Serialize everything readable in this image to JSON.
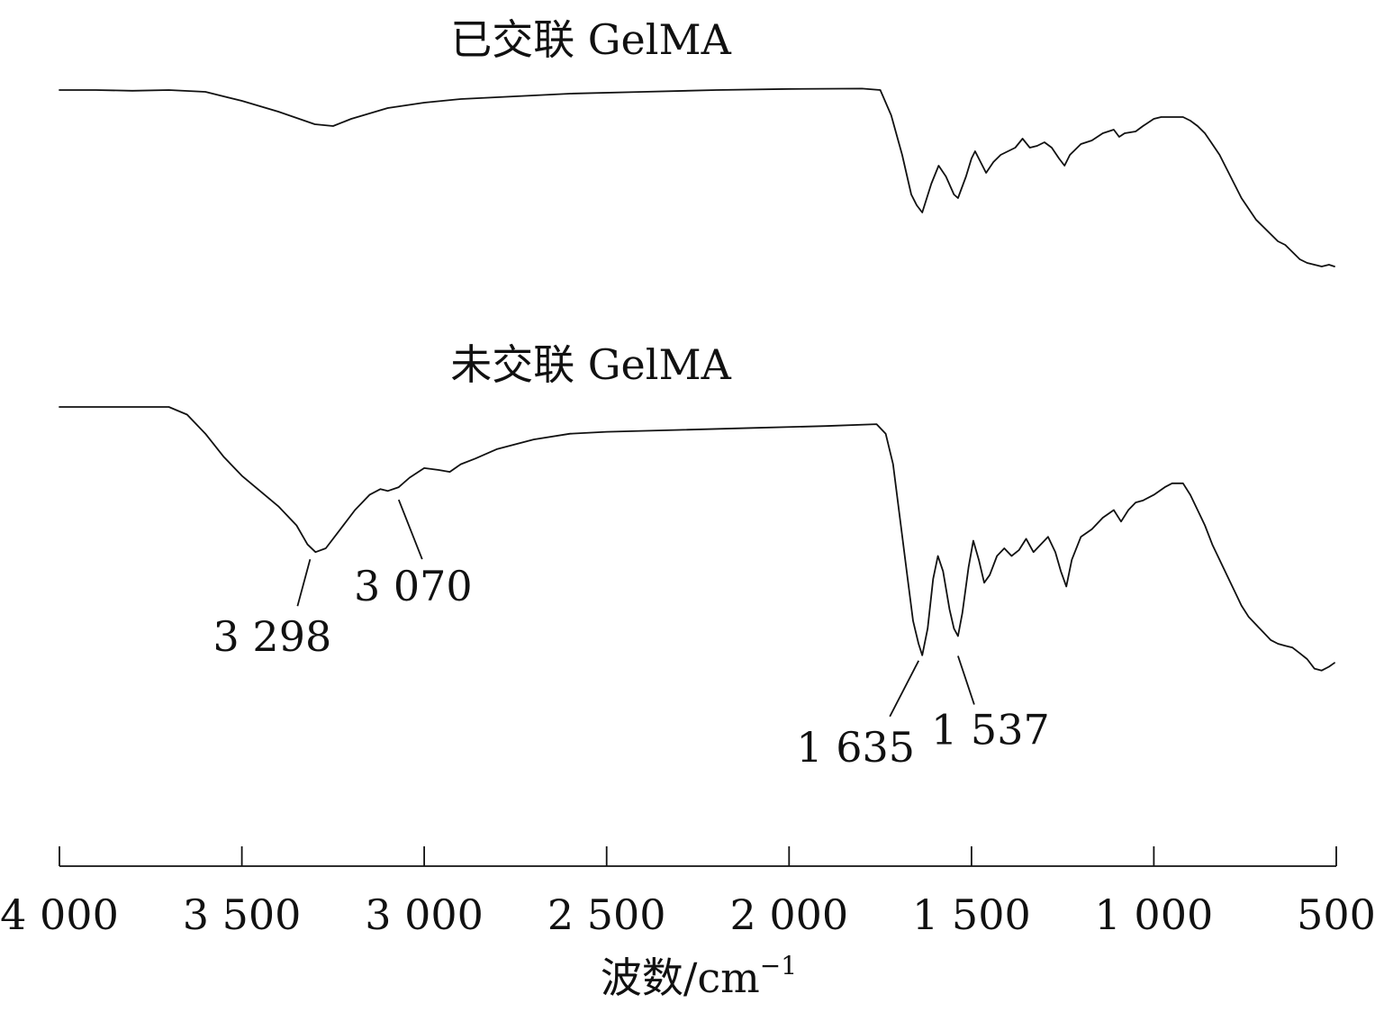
{
  "chart_data": {
    "type": "line",
    "title": "",
    "xlabel": "波数/cm⁻¹",
    "xlabel_main": "波数",
    "xlabel_unit": "/cm",
    "xlabel_sup": "−1",
    "ylabel": "",
    "xlim": [
      4000,
      500
    ],
    "x_reversed": true,
    "y_axis_shown": false,
    "grid": false,
    "legend": "none",
    "xticks": [
      4000,
      3500,
      3000,
      2500,
      2000,
      1500,
      1000,
      500
    ],
    "xtick_labels": [
      "4 000",
      "3 500",
      "3 000",
      "2 500",
      "2 000",
      "1 500",
      "1 000",
      "500"
    ],
    "series": [
      {
        "name": "已交联 GelMA",
        "color": "#111111",
        "points": [
          [
            4000,
            100
          ],
          [
            3900,
            100
          ],
          [
            3800,
            99.8
          ],
          [
            3700,
            100
          ],
          [
            3600,
            99.5
          ],
          [
            3500,
            97
          ],
          [
            3400,
            94
          ],
          [
            3300,
            90.5
          ],
          [
            3250,
            90
          ],
          [
            3200,
            92
          ],
          [
            3100,
            95
          ],
          [
            3000,
            96.5
          ],
          [
            2900,
            97.5
          ],
          [
            2800,
            98
          ],
          [
            2600,
            99
          ],
          [
            2400,
            99.5
          ],
          [
            2200,
            100
          ],
          [
            2000,
            100.3
          ],
          [
            1800,
            100.4
          ],
          [
            1750,
            100
          ],
          [
            1720,
            93
          ],
          [
            1690,
            82
          ],
          [
            1665,
            71
          ],
          [
            1650,
            68
          ],
          [
            1635,
            66
          ],
          [
            1610,
            74
          ],
          [
            1590,
            79
          ],
          [
            1570,
            76
          ],
          [
            1548,
            71
          ],
          [
            1537,
            70
          ],
          [
            1515,
            76
          ],
          [
            1500,
            81
          ],
          [
            1490,
            83
          ],
          [
            1475,
            80
          ],
          [
            1460,
            77
          ],
          [
            1440,
            80
          ],
          [
            1420,
            82
          ],
          [
            1400,
            83
          ],
          [
            1380,
            84
          ],
          [
            1360,
            86.5
          ],
          [
            1340,
            84
          ],
          [
            1320,
            84.5
          ],
          [
            1300,
            85.5
          ],
          [
            1280,
            84
          ],
          [
            1260,
            81
          ],
          [
            1245,
            79
          ],
          [
            1230,
            82
          ],
          [
            1200,
            85
          ],
          [
            1170,
            86
          ],
          [
            1140,
            88
          ],
          [
            1110,
            89
          ],
          [
            1095,
            87
          ],
          [
            1080,
            88
          ],
          [
            1050,
            88.5
          ],
          [
            1030,
            90
          ],
          [
            1000,
            92
          ],
          [
            980,
            92.5
          ],
          [
            950,
            92.5
          ],
          [
            920,
            92.5
          ],
          [
            900,
            91.5
          ],
          [
            880,
            90
          ],
          [
            860,
            88
          ],
          [
            840,
            85
          ],
          [
            820,
            82
          ],
          [
            800,
            78
          ],
          [
            780,
            74
          ],
          [
            760,
            70
          ],
          [
            740,
            67
          ],
          [
            720,
            64
          ],
          [
            700,
            62
          ],
          [
            680,
            60
          ],
          [
            660,
            58
          ],
          [
            640,
            57
          ],
          [
            620,
            55
          ],
          [
            600,
            53
          ],
          [
            580,
            52
          ],
          [
            560,
            51.5
          ],
          [
            540,
            51
          ],
          [
            520,
            51.5
          ],
          [
            505,
            51
          ]
        ]
      },
      {
        "name": "未交联 GelMA",
        "color": "#111111",
        "points": [
          [
            4000,
            100
          ],
          [
            3700,
            100
          ],
          [
            3650,
            98
          ],
          [
            3600,
            93
          ],
          [
            3550,
            87
          ],
          [
            3500,
            82
          ],
          [
            3450,
            78
          ],
          [
            3400,
            74
          ],
          [
            3350,
            69
          ],
          [
            3320,
            64
          ],
          [
            3298,
            62
          ],
          [
            3270,
            63
          ],
          [
            3230,
            68
          ],
          [
            3190,
            73
          ],
          [
            3150,
            77
          ],
          [
            3120,
            78.5
          ],
          [
            3100,
            78
          ],
          [
            3070,
            79
          ],
          [
            3040,
            81.5
          ],
          [
            3000,
            84
          ],
          [
            2960,
            83.5
          ],
          [
            2930,
            83
          ],
          [
            2900,
            85
          ],
          [
            2860,
            86.5
          ],
          [
            2800,
            89
          ],
          [
            2700,
            91.5
          ],
          [
            2600,
            93
          ],
          [
            2500,
            93.5
          ],
          [
            2300,
            94
          ],
          [
            2100,
            94.5
          ],
          [
            1900,
            95
          ],
          [
            1760,
            95.5
          ],
          [
            1735,
            93
          ],
          [
            1715,
            85
          ],
          [
            1695,
            70
          ],
          [
            1675,
            55
          ],
          [
            1660,
            44
          ],
          [
            1645,
            38
          ],
          [
            1635,
            35
          ],
          [
            1620,
            42
          ],
          [
            1605,
            55
          ],
          [
            1592,
            61
          ],
          [
            1578,
            57
          ],
          [
            1560,
            47
          ],
          [
            1548,
            42
          ],
          [
            1537,
            40
          ],
          [
            1525,
            46
          ],
          [
            1508,
            58
          ],
          [
            1495,
            65
          ],
          [
            1480,
            60
          ],
          [
            1465,
            54
          ],
          [
            1450,
            56
          ],
          [
            1430,
            61
          ],
          [
            1410,
            63
          ],
          [
            1390,
            61
          ],
          [
            1370,
            62.5
          ],
          [
            1350,
            65.5
          ],
          [
            1330,
            62
          ],
          [
            1310,
            64
          ],
          [
            1290,
            66
          ],
          [
            1270,
            62
          ],
          [
            1255,
            57
          ],
          [
            1240,
            53
          ],
          [
            1225,
            60
          ],
          [
            1200,
            66
          ],
          [
            1170,
            68
          ],
          [
            1140,
            71
          ],
          [
            1110,
            73
          ],
          [
            1090,
            70
          ],
          [
            1070,
            73
          ],
          [
            1050,
            75
          ],
          [
            1030,
            75.5
          ],
          [
            1000,
            77
          ],
          [
            970,
            79
          ],
          [
            950,
            80
          ],
          [
            920,
            80
          ],
          [
            900,
            77
          ],
          [
            880,
            73
          ],
          [
            860,
            69
          ],
          [
            840,
            64
          ],
          [
            820,
            60
          ],
          [
            800,
            56
          ],
          [
            780,
            52
          ],
          [
            760,
            48
          ],
          [
            740,
            45
          ],
          [
            720,
            43
          ],
          [
            700,
            41
          ],
          [
            680,
            39
          ],
          [
            660,
            38
          ],
          [
            640,
            37.5
          ],
          [
            620,
            37
          ],
          [
            600,
            35.5
          ],
          [
            580,
            34
          ],
          [
            560,
            31.5
          ],
          [
            540,
            31
          ],
          [
            520,
            32
          ],
          [
            505,
            33
          ]
        ]
      }
    ],
    "annotations": [
      {
        "series": 1,
        "x": 3298,
        "text": "3 298"
      },
      {
        "series": 1,
        "x": 3070,
        "text": "3 070"
      },
      {
        "series": 1,
        "x": 1635,
        "text": "1 635"
      },
      {
        "series": 1,
        "x": 1537,
        "text": "1 537"
      }
    ]
  }
}
